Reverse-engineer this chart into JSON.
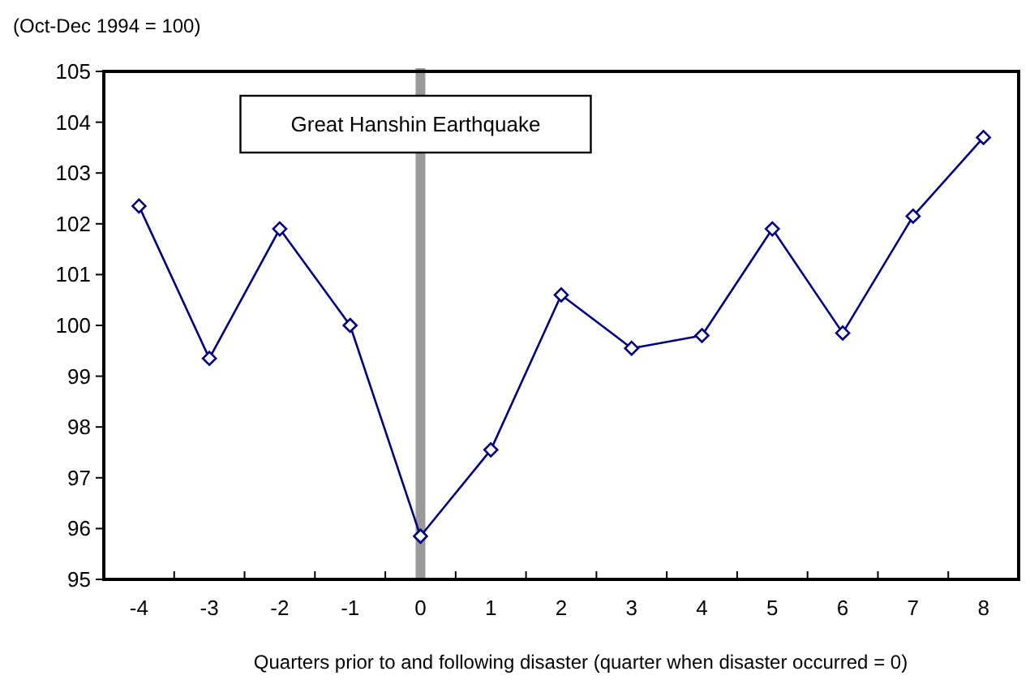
{
  "chart_data": {
    "type": "line",
    "ylabel": "(Oct-Dec 1994 = 100)",
    "xlabel": "Quarters prior to and following disaster (quarter when disaster occurred = 0)",
    "categories": [
      "-4",
      "-3",
      "-2",
      "-1",
      "0",
      "1",
      "2",
      "3",
      "4",
      "5",
      "6",
      "7",
      "8"
    ],
    "series": [
      {
        "color": "#000080",
        "values": [
          102.35,
          99.35,
          101.9,
          100.0,
          95.85,
          97.55,
          100.6,
          99.55,
          99.8,
          101.9,
          99.85,
          102.15,
          103.7
        ]
      }
    ],
    "ylim": [
      95,
      105
    ],
    "yticks": [
      95,
      96,
      97,
      98,
      99,
      100,
      101,
      102,
      103,
      104,
      105
    ],
    "ref_lines": [
      {
        "axis": "x",
        "value": "0",
        "label": "Great Hanshin Earthquake",
        "color": "#999999"
      }
    ],
    "marker": "diamond",
    "line_style": "solid",
    "grid": false
  }
}
